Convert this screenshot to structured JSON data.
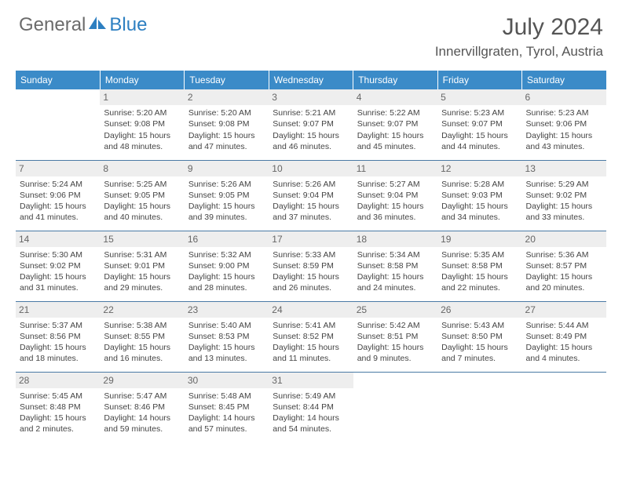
{
  "brand": {
    "part1": "General",
    "part2": "Blue"
  },
  "title": "July 2024",
  "location": "Innervillgraten, Tyrol, Austria",
  "colors": {
    "header_bg": "#3b8bc8",
    "grid_line": "#4a7aa5",
    "daynum_bg": "#eeeeee",
    "text": "#444444",
    "title_text": "#555555"
  },
  "weekdays": [
    "Sunday",
    "Monday",
    "Tuesday",
    "Wednesday",
    "Thursday",
    "Friday",
    "Saturday"
  ],
  "start_offset": 1,
  "days": [
    {
      "n": 1,
      "sunrise": "5:20 AM",
      "sunset": "9:08 PM",
      "daylight": "15 hours and 48 minutes."
    },
    {
      "n": 2,
      "sunrise": "5:20 AM",
      "sunset": "9:08 PM",
      "daylight": "15 hours and 47 minutes."
    },
    {
      "n": 3,
      "sunrise": "5:21 AM",
      "sunset": "9:07 PM",
      "daylight": "15 hours and 46 minutes."
    },
    {
      "n": 4,
      "sunrise": "5:22 AM",
      "sunset": "9:07 PM",
      "daylight": "15 hours and 45 minutes."
    },
    {
      "n": 5,
      "sunrise": "5:23 AM",
      "sunset": "9:07 PM",
      "daylight": "15 hours and 44 minutes."
    },
    {
      "n": 6,
      "sunrise": "5:23 AM",
      "sunset": "9:06 PM",
      "daylight": "15 hours and 43 minutes."
    },
    {
      "n": 7,
      "sunrise": "5:24 AM",
      "sunset": "9:06 PM",
      "daylight": "15 hours and 41 minutes."
    },
    {
      "n": 8,
      "sunrise": "5:25 AM",
      "sunset": "9:05 PM",
      "daylight": "15 hours and 40 minutes."
    },
    {
      "n": 9,
      "sunrise": "5:26 AM",
      "sunset": "9:05 PM",
      "daylight": "15 hours and 39 minutes."
    },
    {
      "n": 10,
      "sunrise": "5:26 AM",
      "sunset": "9:04 PM",
      "daylight": "15 hours and 37 minutes."
    },
    {
      "n": 11,
      "sunrise": "5:27 AM",
      "sunset": "9:04 PM",
      "daylight": "15 hours and 36 minutes."
    },
    {
      "n": 12,
      "sunrise": "5:28 AM",
      "sunset": "9:03 PM",
      "daylight": "15 hours and 34 minutes."
    },
    {
      "n": 13,
      "sunrise": "5:29 AM",
      "sunset": "9:02 PM",
      "daylight": "15 hours and 33 minutes."
    },
    {
      "n": 14,
      "sunrise": "5:30 AM",
      "sunset": "9:02 PM",
      "daylight": "15 hours and 31 minutes."
    },
    {
      "n": 15,
      "sunrise": "5:31 AM",
      "sunset": "9:01 PM",
      "daylight": "15 hours and 29 minutes."
    },
    {
      "n": 16,
      "sunrise": "5:32 AM",
      "sunset": "9:00 PM",
      "daylight": "15 hours and 28 minutes."
    },
    {
      "n": 17,
      "sunrise": "5:33 AM",
      "sunset": "8:59 PM",
      "daylight": "15 hours and 26 minutes."
    },
    {
      "n": 18,
      "sunrise": "5:34 AM",
      "sunset": "8:58 PM",
      "daylight": "15 hours and 24 minutes."
    },
    {
      "n": 19,
      "sunrise": "5:35 AM",
      "sunset": "8:58 PM",
      "daylight": "15 hours and 22 minutes."
    },
    {
      "n": 20,
      "sunrise": "5:36 AM",
      "sunset": "8:57 PM",
      "daylight": "15 hours and 20 minutes."
    },
    {
      "n": 21,
      "sunrise": "5:37 AM",
      "sunset": "8:56 PM",
      "daylight": "15 hours and 18 minutes."
    },
    {
      "n": 22,
      "sunrise": "5:38 AM",
      "sunset": "8:55 PM",
      "daylight": "15 hours and 16 minutes."
    },
    {
      "n": 23,
      "sunrise": "5:40 AM",
      "sunset": "8:53 PM",
      "daylight": "15 hours and 13 minutes."
    },
    {
      "n": 24,
      "sunrise": "5:41 AM",
      "sunset": "8:52 PM",
      "daylight": "15 hours and 11 minutes."
    },
    {
      "n": 25,
      "sunrise": "5:42 AM",
      "sunset": "8:51 PM",
      "daylight": "15 hours and 9 minutes."
    },
    {
      "n": 26,
      "sunrise": "5:43 AM",
      "sunset": "8:50 PM",
      "daylight": "15 hours and 7 minutes."
    },
    {
      "n": 27,
      "sunrise": "5:44 AM",
      "sunset": "8:49 PM",
      "daylight": "15 hours and 4 minutes."
    },
    {
      "n": 28,
      "sunrise": "5:45 AM",
      "sunset": "8:48 PM",
      "daylight": "15 hours and 2 minutes."
    },
    {
      "n": 29,
      "sunrise": "5:47 AM",
      "sunset": "8:46 PM",
      "daylight": "14 hours and 59 minutes."
    },
    {
      "n": 30,
      "sunrise": "5:48 AM",
      "sunset": "8:45 PM",
      "daylight": "14 hours and 57 minutes."
    },
    {
      "n": 31,
      "sunrise": "5:49 AM",
      "sunset": "8:44 PM",
      "daylight": "14 hours and 54 minutes."
    }
  ],
  "labels": {
    "sunrise": "Sunrise:",
    "sunset": "Sunset:",
    "daylight": "Daylight:"
  }
}
